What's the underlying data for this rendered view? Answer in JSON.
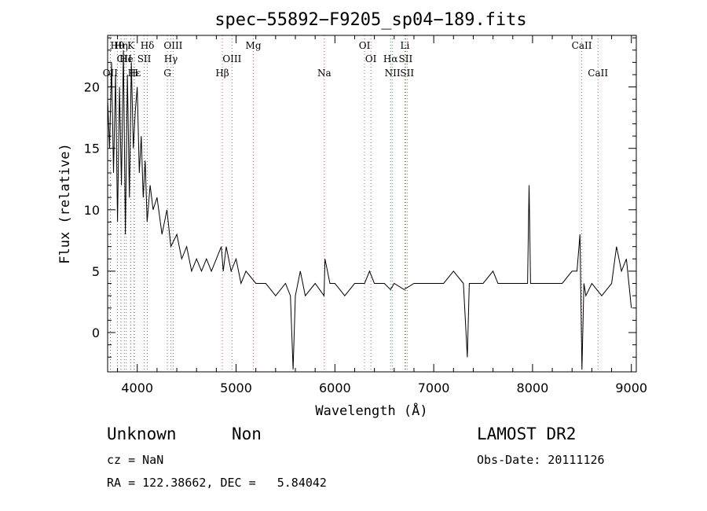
{
  "chart_data": {
    "type": "line",
    "title": "spec−55892−F9205_sp04−189.fits",
    "xlabel": "Wavelength (Å)",
    "ylabel": "Flux (relative)",
    "xlim": [
      3700,
      9050
    ],
    "ylim": [
      -3.2,
      24.2
    ],
    "xticks": [
      4000,
      5000,
      6000,
      7000,
      8000,
      9000
    ],
    "yticks": [
      0,
      5,
      10,
      15,
      20
    ],
    "grid": false,
    "series": [
      {
        "x": [
          3700,
          3720,
          3740,
          3760,
          3780,
          3800,
          3820,
          3840,
          3860,
          3880,
          3900,
          3920,
          3940,
          3960,
          3980,
          4000,
          4020,
          4040,
          4060,
          4080,
          4100,
          4130,
          4160,
          4200,
          4250,
          4300,
          4340,
          4400,
          4450,
          4500,
          4550,
          4600,
          4650,
          4700,
          4750,
          4800,
          4850,
          4870,
          4900,
          4950,
          5000,
          5050,
          5100,
          5200,
          5300,
          5400,
          5500,
          5550,
          5577,
          5600,
          5650,
          5700,
          5800,
          5890,
          5900,
          5950,
          6000,
          6100,
          6200,
          6300,
          6350,
          6400,
          6500,
          6563,
          6600,
          6700,
          6800,
          6900,
          7000,
          7100,
          7200,
          7300,
          7340,
          7360,
          7400,
          7500,
          7600,
          7650,
          7700,
          7800,
          7900,
          7950,
          7965,
          7980,
          8000,
          8100,
          8200,
          8300,
          8400,
          8450,
          8480,
          8500,
          8520,
          8540,
          8600,
          8700,
          8800,
          8850,
          8900,
          8950,
          9000
        ],
        "y": [
          19,
          15,
          22,
          13,
          21,
          9,
          20,
          12,
          23,
          8,
          21,
          11,
          22,
          15,
          18,
          20,
          13,
          16,
          11,
          14,
          9,
          12,
          10,
          11,
          8,
          10,
          7,
          8,
          6,
          7,
          5,
          6,
          5,
          6,
          5,
          6,
          7,
          5,
          7,
          5,
          6,
          4,
          5,
          4,
          4,
          3,
          4,
          3,
          -3,
          3,
          5,
          3,
          4,
          3,
          6,
          4,
          4,
          3,
          4,
          4,
          5,
          4,
          4,
          3.5,
          4,
          3.5,
          4,
          4,
          4,
          4,
          5,
          4,
          -2,
          4,
          4,
          4,
          5,
          4,
          4,
          4,
          4,
          4,
          12,
          4,
          4,
          4,
          4,
          4,
          5,
          5,
          8,
          -3,
          4,
          3,
          4,
          3,
          4,
          7,
          5,
          6,
          2
        ]
      }
    ],
    "lines": [
      {
        "label": "OII",
        "x": 3727,
        "row": 3
      },
      {
        "label": "Hθ",
        "x": 3798,
        "row": 1
      },
      {
        "label": "Hη",
        "x": 3835,
        "row": 1
      },
      {
        "label": "OII",
        "x": 3869,
        "row": 2
      },
      {
        "label": "He",
        "x": 3889,
        "row": 2
      },
      {
        "label": "Hε",
        "x": 3970,
        "row": 3
      },
      {
        "label": "K",
        "x": 3934,
        "row": 1
      },
      {
        "label": "H",
        "x": 3968,
        "row": 3
      },
      {
        "label": "SII",
        "x": 4070,
        "row": 2
      },
      {
        "label": "Hδ",
        "x": 4102,
        "row": 1
      },
      {
        "label": "OIII",
        "x": 4363,
        "row": 1
      },
      {
        "label": "Hγ",
        "x": 4340,
        "row": 2
      },
      {
        "label": "G",
        "x": 4305,
        "row": 3
      },
      {
        "label": "OIII",
        "x": 4959,
        "row": 2
      },
      {
        "label": "Hβ",
        "x": 4861,
        "row": 3
      },
      {
        "label": "Mg",
        "x": 5175,
        "row": 1
      },
      {
        "label": "Na",
        "x": 5893,
        "row": 3
      },
      {
        "label": "OI",
        "x": 6300,
        "row": 1
      },
      {
        "label": "OI",
        "x": 6364,
        "row": 2
      },
      {
        "label": "NII",
        "x": 6583,
        "row": 3
      },
      {
        "label": "Hα",
        "x": 6563,
        "row": 2
      },
      {
        "label": "Li",
        "x": 6708,
        "row": 1
      },
      {
        "label": "SII",
        "x": 6716,
        "row": 2
      },
      {
        "label": "SII",
        "x": 6731,
        "row": 3
      },
      {
        "label": "CaII",
        "x": 8498,
        "row": 1
      },
      {
        "label": "CaII",
        "x": 8662,
        "row": 3
      }
    ]
  },
  "info": {
    "class": "Unknown",
    "subclass": "Non",
    "survey": "LAMOST DR2",
    "cz": "cz = NaN",
    "obs_date": "Obs-Date: 20111126",
    "coords": "RA = 122.38662, DEC =   5.84042"
  }
}
